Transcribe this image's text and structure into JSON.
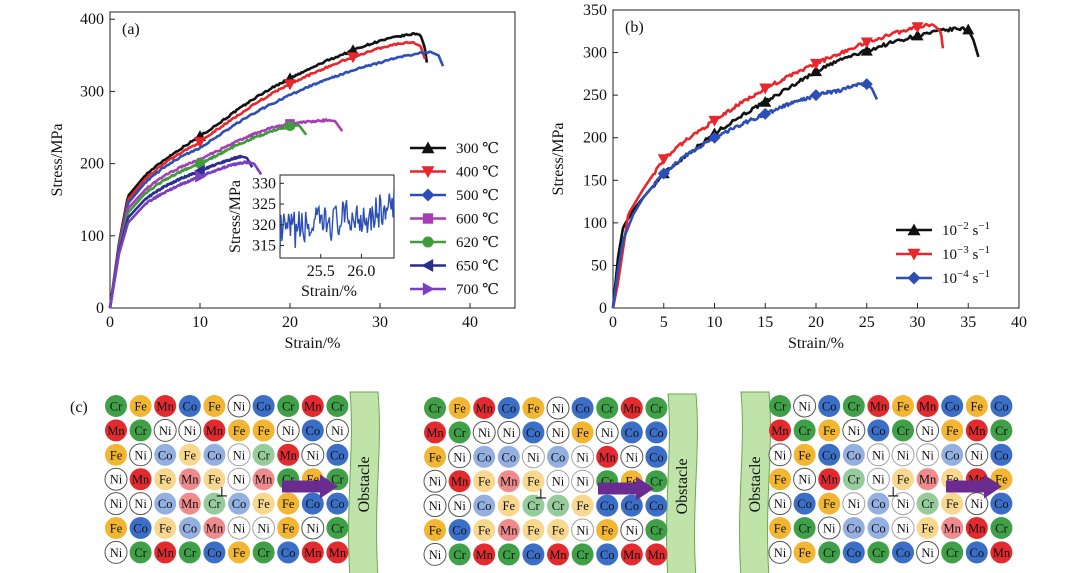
{
  "chart_data": [
    {
      "panel": "(a)",
      "type": "line",
      "xlabel": "Strain/%",
      "ylabel": "Stress/MPa",
      "xlim": [
        0,
        45
      ],
      "ylim": [
        0,
        410
      ],
      "xticks": [
        0,
        10,
        20,
        30,
        40
      ],
      "yticks": [
        0,
        100,
        200,
        300,
        400
      ],
      "legend_position": "right",
      "series": [
        {
          "name": "300 ℃",
          "marker": "triangle-up",
          "color": "#111111",
          "x": [
            0,
            1,
            2,
            4,
            6,
            8,
            10,
            12,
            14,
            16,
            18,
            20,
            22,
            24,
            26,
            28,
            30,
            32,
            33,
            34,
            34.5,
            35,
            35.2
          ],
          "y": [
            0,
            90,
            155,
            185,
            205,
            222,
            238,
            255,
            273,
            290,
            305,
            318,
            330,
            342,
            352,
            362,
            370,
            376,
            378,
            380,
            378,
            360,
            340
          ],
          "markers_x": [
            10,
            20,
            27
          ]
        },
        {
          "name": "400 ℃",
          "marker": "triangle-down",
          "color": "#e8262b",
          "x": [
            0,
            1,
            2,
            4,
            6,
            8,
            10,
            12,
            14,
            16,
            18,
            20,
            22,
            24,
            26,
            28,
            30,
            32,
            33.5,
            34.5,
            35
          ],
          "y": [
            0,
            88,
            150,
            180,
            200,
            216,
            230,
            248,
            265,
            282,
            297,
            310,
            322,
            333,
            343,
            352,
            360,
            366,
            368,
            363,
            345
          ],
          "markers_x": [
            10,
            20,
            27
          ]
        },
        {
          "name": "500 ℃",
          "marker": "diamond",
          "color": "#2d4fb5",
          "x": [
            0,
            1,
            2,
            4,
            6,
            8,
            10,
            12,
            14,
            16,
            18,
            20,
            22,
            24,
            26,
            28,
            30,
            32,
            34,
            35.5,
            36.5,
            37
          ],
          "y": [
            0,
            85,
            145,
            175,
            195,
            210,
            222,
            238,
            255,
            270,
            283,
            295,
            306,
            316,
            325,
            333,
            340,
            347,
            352,
            355,
            350,
            335
          ],
          "markers_x": []
        },
        {
          "name": "600 ℃",
          "marker": "square",
          "color": "#a63fb5",
          "x": [
            0,
            1,
            2,
            4,
            6,
            8,
            10,
            12,
            14,
            16,
            18,
            20,
            22,
            24,
            25,
            25.8
          ],
          "y": [
            0,
            82,
            138,
            165,
            183,
            196,
            206,
            218,
            230,
            241,
            250,
            255,
            258,
            260,
            259,
            245
          ],
          "markers_x": [
            20
          ]
        },
        {
          "name": "620 ℃",
          "marker": "circle",
          "color": "#3f9c3a",
          "x": [
            0,
            1,
            2,
            4,
            6,
            8,
            10,
            12,
            14,
            16,
            18,
            20,
            21,
            21.8
          ],
          "y": [
            0,
            80,
            132,
            160,
            177,
            190,
            200,
            212,
            225,
            236,
            245,
            252,
            253,
            240
          ],
          "markers_x": [
            10,
            20
          ]
        },
        {
          "name": "650 ℃",
          "marker": "triangle-left",
          "color": "#2a2f8f",
          "x": [
            0,
            1,
            2,
            4,
            6,
            8,
            10,
            12,
            13.5,
            14.5,
            15.2,
            15.8
          ],
          "y": [
            0,
            78,
            125,
            152,
            168,
            180,
            190,
            200,
            206,
            210,
            208,
            195
          ],
          "markers_x": [
            10
          ]
        },
        {
          "name": "700 ℃",
          "marker": "triangle-right",
          "color": "#7b3fc4",
          "x": [
            0,
            1,
            2,
            4,
            6,
            8,
            10,
            12,
            13.5,
            15,
            16,
            16.8
          ],
          "y": [
            0,
            75,
            118,
            145,
            160,
            172,
            182,
            192,
            198,
            202,
            200,
            185
          ],
          "markers_x": [
            10
          ]
        }
      ],
      "inset": {
        "xlabel": "Strain/%",
        "ylabel": "Stress/MPa",
        "xlim": [
          25.0,
          26.4
        ],
        "ylim": [
          312,
          332
        ],
        "xticks": [
          25.5,
          26.0
        ],
        "yticks": [
          315,
          320,
          325,
          330
        ],
        "series": "500 ℃"
      }
    },
    {
      "panel": "(b)",
      "type": "line",
      "xlabel": "Strain/%",
      "ylabel": "Stress/MPa",
      "xlim": [
        0,
        40
      ],
      "ylim": [
        0,
        350
      ],
      "xticks": [
        0,
        5,
        10,
        15,
        20,
        25,
        30,
        35,
        40
      ],
      "yticks": [
        0,
        50,
        100,
        150,
        200,
        250,
        300,
        350
      ],
      "legend_position": "right",
      "series": [
        {
          "name": "10",
          "exponent": "−2",
          "unit": " s",
          "unit_exponent": "−1",
          "marker": "triangle-up",
          "color": "#111111",
          "x": [
            0,
            0.5,
            1,
            2,
            3,
            5,
            7.5,
            10,
            12.5,
            15,
            17.5,
            20,
            22.5,
            25,
            27.5,
            30,
            32.5,
            34,
            35,
            35.5,
            36
          ],
          "y": [
            0,
            60,
            95,
            115,
            130,
            158,
            182,
            205,
            225,
            242,
            260,
            278,
            292,
            302,
            312,
            320,
            326,
            328,
            327,
            315,
            295
          ],
          "markers_x": [
            5,
            10,
            15,
            20,
            25,
            30,
            35
          ]
        },
        {
          "name": "10",
          "exponent": "−3",
          "unit": " s",
          "unit_exponent": "−1",
          "marker": "triangle-down",
          "color": "#e8262b",
          "x": [
            0,
            0.5,
            1,
            1.5,
            3,
            5,
            7.5,
            10,
            12.5,
            15,
            17.5,
            20,
            22.5,
            25,
            27.5,
            30,
            31.5,
            32.3,
            32.5
          ],
          "y": [
            0,
            30,
            70,
            110,
            140,
            175,
            200,
            220,
            240,
            258,
            273,
            287,
            300,
            312,
            322,
            330,
            333,
            325,
            305
          ],
          "markers_x": [
            5,
            10,
            15,
            20,
            25,
            30
          ]
        },
        {
          "name": "10",
          "exponent": "−4",
          "unit": " s",
          "unit_exponent": "−1",
          "marker": "diamond",
          "color": "#2d4fb5",
          "x": [
            0,
            0.5,
            1,
            2,
            3,
            5,
            7.5,
            10,
            12.5,
            15,
            17.5,
            20,
            22.5,
            24,
            25,
            25.5,
            26
          ],
          "y": [
            0,
            45,
            80,
            110,
            130,
            158,
            182,
            200,
            215,
            228,
            240,
            250,
            256,
            262,
            263,
            258,
            245
          ],
          "markers_x": [
            5,
            10,
            15,
            20,
            25
          ]
        }
      ]
    }
  ],
  "panel_c": {
    "label": "(c)",
    "element_colors": {
      "Cr": "#3fa048",
      "Fe": "#f2b632",
      "Mn": "#e32b2f",
      "Co": "#3b6fc7",
      "Ni": "#ffffff"
    },
    "obstacle_label": "Obstacle",
    "obstacle_color": "#bfe3a8",
    "arrow_color": "#6a2c91",
    "dislocation_symbol": "⊥",
    "grids": [
      {
        "obstacle_side": "right",
        "rows": [
          [
            "Cr",
            "Fe",
            "Mn",
            "Co",
            "Fe",
            "Ni",
            "Co",
            "Cr",
            "Mn",
            "Cr"
          ],
          [
            "Mn",
            "Cr",
            "Ni",
            "Ni",
            "Mn",
            "Fe",
            "Fe",
            "Ni",
            "Co",
            "Ni"
          ],
          [
            "Fe",
            "Ni",
            "Co",
            "Fe",
            "Co",
            "Ni",
            "Cr",
            "Mn",
            "Ni",
            "Co"
          ],
          [
            "Ni",
            "Mn",
            "Fe",
            "Mn",
            "Fe",
            "Ni",
            "Mn",
            "Cr",
            "Fe",
            "Cr"
          ],
          [
            "Ni",
            "Ni",
            "Co",
            "Mn",
            "Cr",
            "Co",
            "Fe",
            "Fe",
            "Co",
            "Co"
          ],
          [
            "Fe",
            "Co",
            "Fe",
            "Co",
            "Mn",
            "Ni",
            "Ni",
            "Fe",
            "Ni",
            "Cr"
          ],
          [
            "Ni",
            "Cr",
            "Mn",
            "Cr",
            "Co",
            "Fe",
            "Cr",
            "Co",
            "Mn",
            "Mn"
          ]
        ]
      },
      {
        "obstacle_side": "right",
        "rows": [
          [
            "Cr",
            "Fe",
            "Mn",
            "Co",
            "Fe",
            "Ni",
            "Co",
            "Cr",
            "Mn",
            "Cr"
          ],
          [
            "Mn",
            "Cr",
            "Ni",
            "Ni",
            "Co",
            "Ni",
            "Fe",
            "Ni",
            "Co",
            "Co"
          ],
          [
            "Fe",
            "Ni",
            "Co",
            "Co",
            "Ni",
            "Co",
            "Ni",
            "Mn",
            "Ni",
            "Co"
          ],
          [
            "Ni",
            "Mn",
            "Fe",
            "Mn",
            "Fe",
            "Ni",
            "Ni",
            "Cr",
            "Fe",
            "Cr"
          ],
          [
            "Ni",
            "Ni",
            "Co",
            "Fe",
            "Cr",
            "Cr",
            "Fe",
            "Co",
            "Co",
            "Co"
          ],
          [
            "Fe",
            "Co",
            "Fe",
            "Mn",
            "Fe",
            "Fe",
            "Ni",
            "Fe",
            "Ni",
            "Cr"
          ],
          [
            "Ni",
            "Cr",
            "Mn",
            "Cr",
            "Co",
            "Mn",
            "Cr",
            "Co",
            "Mn",
            "Mn"
          ]
        ]
      },
      {
        "obstacle_side": "left",
        "rows": [
          [
            "Cr",
            "Ni",
            "Co",
            "Cr",
            "Mn",
            "Fe",
            "Mn",
            "Co",
            "Fe",
            "Co"
          ],
          [
            "Mn",
            "Cr",
            "Fe",
            "Ni",
            "Co",
            "Cr",
            "Ni",
            "Fe",
            "Mn",
            "Cr"
          ],
          [
            "Ni",
            "Fe",
            "Co",
            "Co",
            "Ni",
            "Ni",
            "Ni",
            "Co",
            "Ni",
            "Co"
          ],
          [
            "Fe",
            "Ni",
            "Mn",
            "Cr",
            "Ni",
            "Fe",
            "Mn",
            "Fe",
            "Mn",
            "Fe"
          ],
          [
            "Ni",
            "Co",
            "Fe",
            "Ni",
            "Co",
            "Ni",
            "Cr",
            "Fe",
            "Ni",
            "Co"
          ],
          [
            "Fe",
            "Cr",
            "Ni",
            "Co",
            "Co",
            "Ni",
            "Fe",
            "Mn",
            "Mn",
            "Cr"
          ],
          [
            "Ni",
            "Fe",
            "Cr",
            "Co",
            "Cr",
            "Co",
            "Ni",
            "Cr",
            "Co",
            "Mn"
          ]
        ]
      }
    ]
  }
}
